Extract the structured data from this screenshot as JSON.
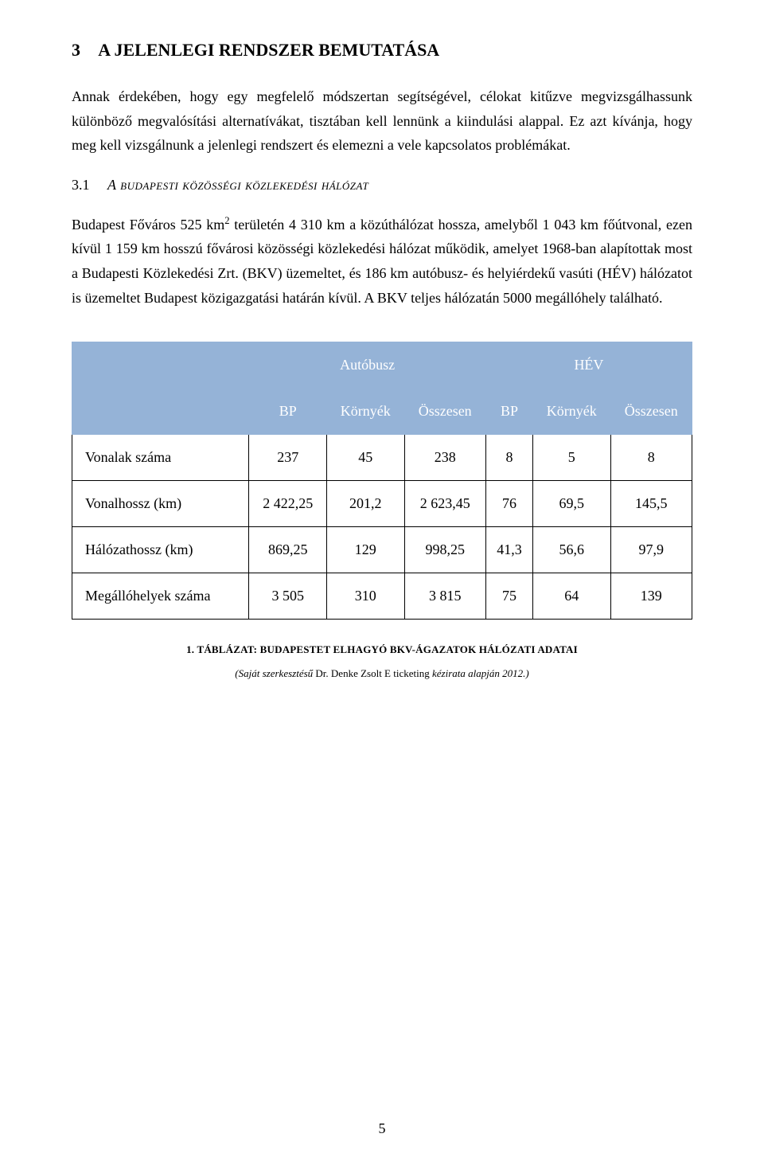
{
  "heading1": {
    "number": "3",
    "title": "A JELENLEGI RENDSZER BEMUTATÁSA"
  },
  "para1": "Annak érdekében, hogy egy megfelelő módszertan segítségével, célokat kitűzve megvizsgálhassunk különböző megvalósítási alternatívákat, tisztában kell lennünk a kiindulási alappal. Ez azt kívánja, hogy meg kell vizsgálnunk a jelenlegi rendszert és elemezni a vele kapcsolatos problémákat.",
  "heading2": {
    "number": "3.1",
    "title": "A budapesti közösségi közlekedési hálózat"
  },
  "para2_pre": "Budapest Főváros 525 km",
  "para2_sup": "2",
  "para2_post": " területén 4 310 km a közúthálózat hossza, amelyből 1 043 km főútvonal, ezen kívül 1 159 km hosszú fővárosi közösségi közlekedési hálózat működik, amelyet 1968-ban alapítottak most a Budapesti Közlekedési Zrt. (BKV) üzemeltet, és 186 km autóbusz- és helyiérdekű vasúti (HÉV) hálózatot is üzemeltet Budapest közigazgatási határán kívül. A BKV teljes hálózatán 5000 megállóhely található.",
  "table": {
    "header_fill": "#95b3d7",
    "header_text_color": "#ffffff",
    "groups": [
      "Autóbusz",
      "HÉV"
    ],
    "subcols": [
      "BP",
      "Környék",
      "Összesen",
      "BP",
      "Környék",
      "Összesen"
    ],
    "rows": [
      {
        "label": "Vonalak száma",
        "values": [
          "237",
          "45",
          "238",
          "8",
          "5",
          "8"
        ]
      },
      {
        "label": "Vonalhossz (km)",
        "values": [
          "2 422,25",
          "201,2",
          "2 623,45",
          "76",
          "69,5",
          "145,5"
        ]
      },
      {
        "label": "Hálózathossz (km)",
        "values": [
          "869,25",
          "129",
          "998,25",
          "41,3",
          "56,6",
          "97,9"
        ]
      },
      {
        "label": "Megállóhelyek száma",
        "values": [
          "3 505",
          "310",
          "3 815",
          "75",
          "64",
          "139"
        ]
      }
    ]
  },
  "caption": "1. TÁBLÁZAT: BUDAPESTET ELHAGYÓ BKV-ÁGAZATOK HÁLÓZATI ADATAI",
  "source": {
    "pre_italic": "(Saját szerkesztésű ",
    "roman": "Dr. Denke Zsolt E ticketing ",
    "post_italic": "kézirata alapján 2012.)"
  },
  "page_number": "5"
}
